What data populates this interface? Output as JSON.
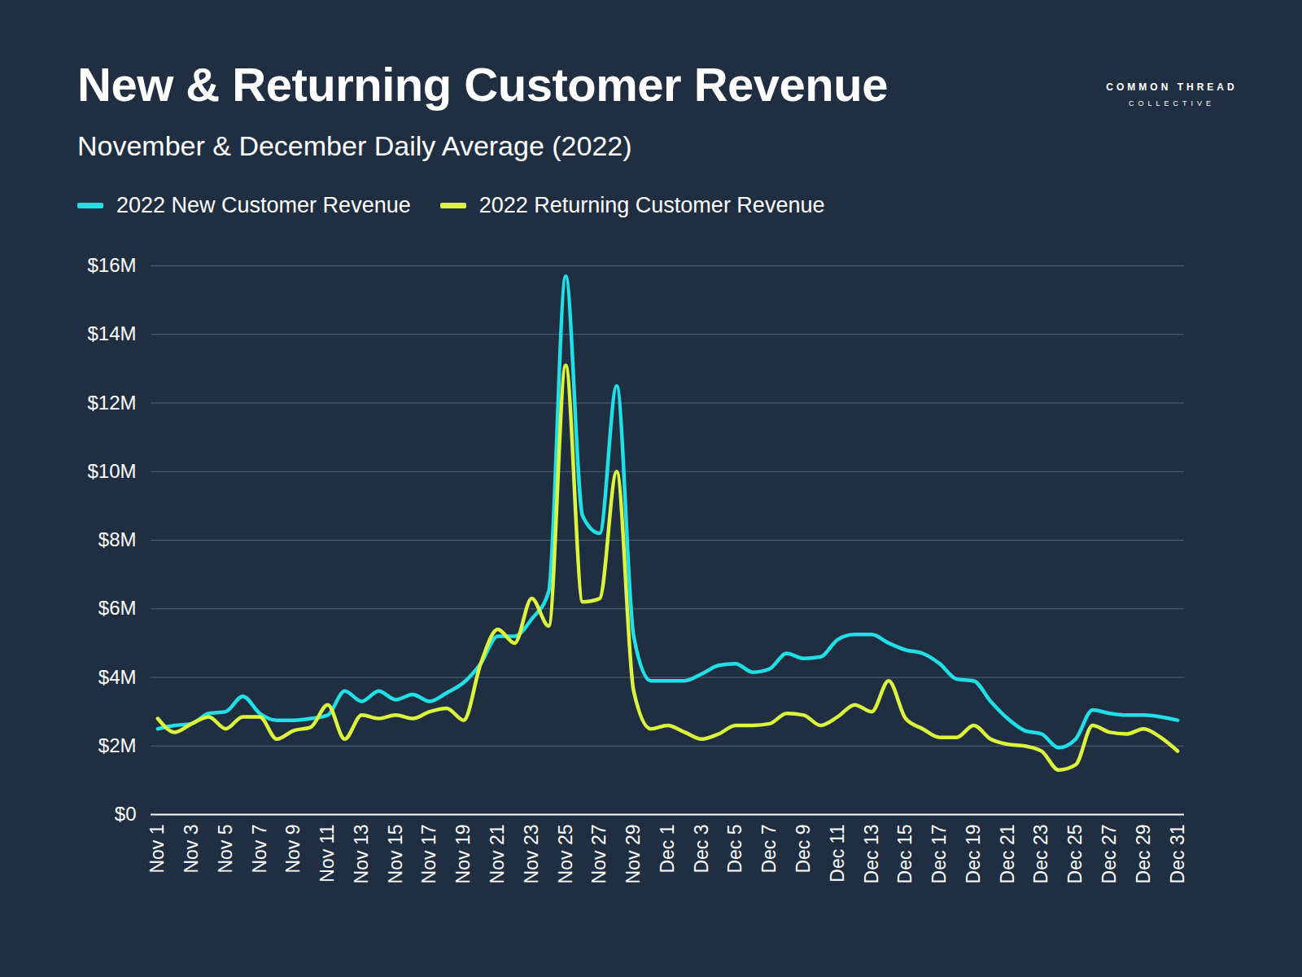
{
  "chart_data": {
    "type": "line",
    "title": "New & Returning Customer Revenue",
    "subtitle": "November & December Daily Average (2022)",
    "logo_text": [
      "COMMON THREAD",
      "COLLECTIVE"
    ],
    "categories": [
      "Nov 1",
      null,
      "Nov 3",
      null,
      "Nov 5",
      null,
      "Nov 7",
      null,
      "Nov 9",
      null,
      "Nov 11",
      null,
      "Nov 13",
      null,
      "Nov 15",
      null,
      "Nov 17",
      null,
      "Nov 19",
      null,
      "Nov 21",
      null,
      "Nov 23",
      null,
      "Nov 25",
      null,
      "Nov 27",
      null,
      "Nov 29",
      null,
      "Dec 1",
      null,
      "Dec 3",
      null,
      "Dec 5",
      null,
      "Dec 7",
      null,
      "Dec 9",
      null,
      "Dec 11",
      null,
      "Dec 13",
      null,
      "Dec 15",
      null,
      "Dec 17",
      null,
      "Dec 19",
      null,
      "Dec 21",
      null,
      "Dec 23",
      null,
      "Dec 25",
      null,
      "Dec 27",
      null,
      "Dec 29",
      null,
      "Dec 31"
    ],
    "series": [
      {
        "name": "2022 New Customer Revenue",
        "color": "#1fe0e6",
        "values": [
          2.5,
          2.6,
          2.65,
          2.95,
          3.0,
          3.45,
          2.95,
          2.75,
          2.75,
          2.8,
          2.9,
          3.6,
          3.3,
          3.6,
          3.35,
          3.5,
          3.3,
          3.55,
          3.85,
          4.4,
          5.2,
          5.2,
          5.7,
          6.5,
          15.7,
          8.7,
          8.2,
          12.5,
          5.2,
          3.9,
          3.9,
          3.9,
          4.1,
          4.35,
          4.4,
          4.15,
          4.25,
          4.7,
          4.55,
          4.6,
          5.1,
          5.25,
          5.25,
          5.0,
          4.8,
          4.7,
          4.4,
          3.95,
          3.9,
          3.3,
          2.8,
          2.45,
          2.35,
          1.95,
          2.2,
          3.05,
          2.95,
          2.9,
          2.9,
          2.85,
          2.75
        ]
      },
      {
        "name": "2022 Returning Customer Revenue",
        "color": "#dcf53c",
        "values": [
          2.8,
          2.4,
          2.65,
          2.85,
          2.5,
          2.85,
          2.85,
          2.2,
          2.45,
          2.55,
          3.2,
          2.2,
          2.9,
          2.8,
          2.9,
          2.8,
          3.0,
          3.1,
          2.75,
          4.4,
          5.4,
          5.0,
          6.3,
          5.5,
          13.1,
          6.2,
          6.3,
          10.0,
          3.6,
          2.5,
          2.6,
          2.4,
          2.2,
          2.35,
          2.6,
          2.6,
          2.65,
          2.95,
          2.9,
          2.6,
          2.85,
          3.2,
          3.0,
          3.9,
          2.8,
          2.5,
          2.25,
          2.25,
          2.6,
          2.2,
          2.05,
          2.0,
          1.85,
          1.3,
          1.45,
          2.6,
          2.4,
          2.35,
          2.5,
          2.25,
          1.85
        ]
      }
    ],
    "ylim": [
      0,
      16
    ],
    "yticks": [
      {
        "value": 0,
        "label": "$0"
      },
      {
        "value": 2,
        "label": "$2M"
      },
      {
        "value": 4,
        "label": "$4M"
      },
      {
        "value": 6,
        "label": "$6M"
      },
      {
        "value": 8,
        "label": "$8M"
      },
      {
        "value": 10,
        "label": "$10M"
      },
      {
        "value": 12,
        "label": "$12M"
      },
      {
        "value": 14,
        "label": "$14M"
      },
      {
        "value": 16,
        "label": "$16M"
      }
    ],
    "grid": true,
    "legend": "top-left"
  }
}
